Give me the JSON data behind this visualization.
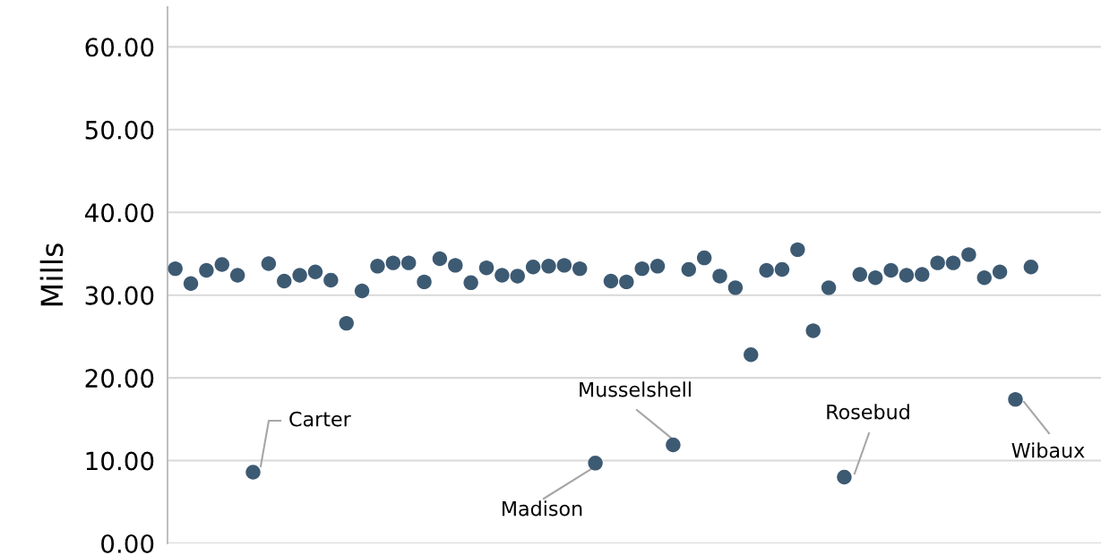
{
  "chart_data": {
    "type": "scatter",
    "ylabel": "Mills",
    "categories": [
      null,
      null,
      null,
      null,
      null,
      null,
      null,
      null,
      null,
      null,
      null,
      null,
      null,
      null,
      null,
      null,
      null,
      null,
      null,
      null,
      null,
      null,
      null,
      null,
      null,
      null,
      null,
      null,
      null,
      null,
      null,
      null,
      null,
      null,
      null,
      null,
      null,
      null,
      null,
      null,
      null,
      null,
      null,
      null,
      null,
      null,
      null,
      null,
      null,
      null,
      null,
      null,
      null,
      null,
      null,
      null,
      null,
      null,
      null,
      null
    ],
    "series": [
      {
        "color": "#3d5a73",
        "values": [
          33.2,
          31.4,
          33.0,
          33.7,
          32.4,
          8.6,
          33.8,
          31.7,
          32.4,
          32.8,
          31.8,
          26.6,
          30.5,
          33.5,
          33.9,
          33.9,
          31.6,
          34.4,
          33.6,
          31.5,
          33.3,
          32.4,
          32.3,
          33.4,
          33.5,
          33.6,
          33.2,
          9.7,
          31.7,
          31.6,
          33.2,
          33.5,
          11.9,
          33.1,
          34.5,
          32.3,
          30.9,
          22.8,
          33.0,
          33.1,
          35.5,
          25.7,
          30.9,
          8.0,
          32.5,
          32.1,
          33.0,
          32.4,
          32.5,
          33.9,
          33.9,
          34.9,
          32.1,
          32.8,
          17.4,
          33.4,
          null,
          null,
          null,
          null
        ]
      }
    ],
    "ylim": [
      0,
      64.8
    ],
    "yticks": [
      {
        "value": 0,
        "label": "0.00"
      },
      {
        "value": 10,
        "label": "10.00"
      },
      {
        "value": 20,
        "label": "20.00"
      },
      {
        "value": 30,
        "label": "30.00"
      },
      {
        "value": 40,
        "label": "40.00"
      },
      {
        "value": 50,
        "label": "50.00"
      },
      {
        "value": 60,
        "label": "60.00"
      }
    ],
    "grid": "y",
    "marker": "circle",
    "annotations": [
      "Carter",
      "Madison",
      "Musselshell",
      "Rosebud",
      "Wibaux"
    ]
  }
}
